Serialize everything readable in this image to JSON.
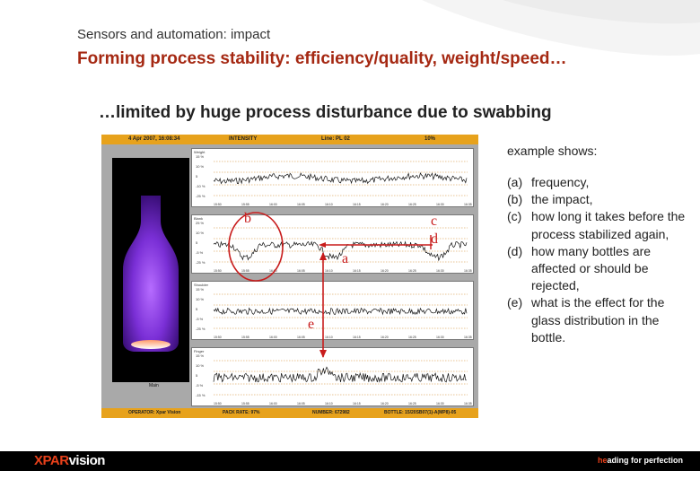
{
  "slide": {
    "subtitle": "Sensors and automation: impact",
    "title": "Forming process stability: efficiency/quality, weight/speed…",
    "headline": "…limited by huge process disturbance due to swabbing"
  },
  "screen": {
    "header": {
      "date": "4 Apr 2007, 16:08:34",
      "mode": "INTENSITY",
      "line": "Line: PL 02",
      "pct": "10%"
    },
    "bottle_label": "Main",
    "plots": [
      {
        "name": "Weight",
        "y_ticks": [
          "15 %",
          "10 %",
          "5",
          "-10 %",
          "-25 %"
        ]
      },
      {
        "name": "Blank",
        "y_ticks": [
          "25 %",
          "10 %",
          "5",
          "-5 %",
          "-25 %"
        ]
      },
      {
        "name": "Shoulder",
        "y_ticks": [
          "15 %",
          "10 %",
          "5",
          "-5 %",
          "-25 %"
        ]
      },
      {
        "name": "Finger",
        "y_ticks": [
          "15 %",
          "10 %",
          "5",
          "-5 %",
          "-15 %"
        ]
      }
    ],
    "time_ticks": [
      "15:50",
      "15:55",
      "16:00",
      "16:05",
      "16:10",
      "16:15",
      "16:20",
      "16:25",
      "16:30",
      "16:35"
    ],
    "footer": {
      "operator": "OPERATOR: Xpar Vision",
      "pack_rate": "PACK RATE: 97%",
      "number": "NUMBER: 672982",
      "bottle": "BOTTLE: 15/20SB07(1)-A(MP8)-05"
    }
  },
  "annotations": [
    "a",
    "b",
    "c",
    "d",
    "e"
  ],
  "panel": {
    "intro": "example shows:",
    "items": [
      {
        "key": "(a)",
        "text": "frequency,"
      },
      {
        "key": "(b)",
        "text": "the impact,"
      },
      {
        "key": "(c)",
        "text": "how long it takes before the process stabilized again,"
      },
      {
        "key": "(d)",
        "text": "how many bottles are affected or should be rejected,"
      },
      {
        "key": "(e)",
        "text": "what is the effect for the glass distribution in the bottle."
      }
    ]
  },
  "footer": {
    "logo_x": "XPAR",
    "logo_v": "vision",
    "tagline_hl": "he",
    "tagline_rest": "ading for perfection"
  },
  "colors": {
    "title": "#a52812",
    "accent": "#e8401a",
    "annotation": "#c81c1c",
    "screen_bar": "#e7a21c"
  }
}
